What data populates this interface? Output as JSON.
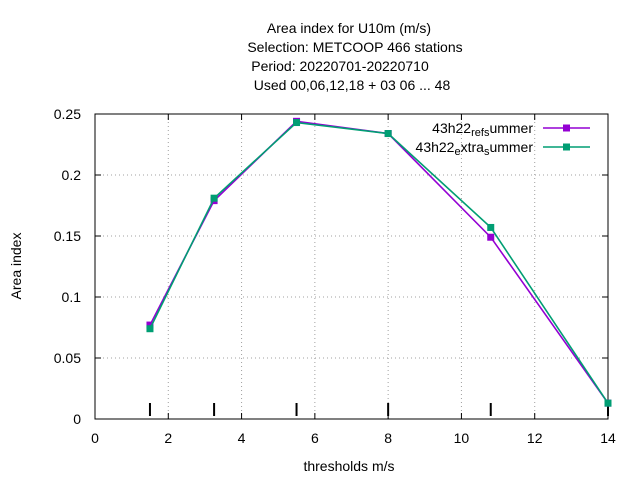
{
  "chart_data": {
    "type": "line",
    "title_lines": [
      "Area index  for U10m (m/s)",
      "Selection: METCOOP    466 stations",
      "Period: 20220701-20220710",
      "Used  00,06,12,18  + 03 06 ... 48"
    ],
    "xlabel": "thresholds m/s",
    "ylabel": "Area index",
    "xlim": [
      0,
      14
    ],
    "ylim": [
      0,
      0.25
    ],
    "x_ticks": [
      "0",
      "2",
      "4",
      "6",
      "8",
      "10",
      "12",
      "14"
    ],
    "y_ticks": [
      "0",
      "0.05",
      "0.1",
      "0.15",
      "0.2",
      "0.25"
    ],
    "grid": true,
    "legend_position": "top-right",
    "threshold_markers": [
      1.5,
      3.25,
      5.5,
      8,
      10.8,
      14
    ],
    "series": [
      {
        "name": "43h22_ref_summer",
        "label_parts": [
          "43h22",
          "ref",
          "s",
          "ummer"
        ],
        "color": "#9400d3",
        "x": [
          1.5,
          3.25,
          5.5,
          8,
          10.8,
          14
        ],
        "values": [
          0.077,
          0.179,
          0.244,
          0.234,
          0.149,
          0.013
        ]
      },
      {
        "name": "43h22_extra_summer",
        "label_parts": [
          "43h22",
          "e",
          "xtra",
          "s",
          "ummer"
        ],
        "color": "#009e73",
        "x": [
          1.5,
          3.25,
          5.5,
          8,
          10.8,
          14
        ],
        "values": [
          0.074,
          0.181,
          0.243,
          0.234,
          0.157,
          0.013
        ]
      }
    ]
  }
}
